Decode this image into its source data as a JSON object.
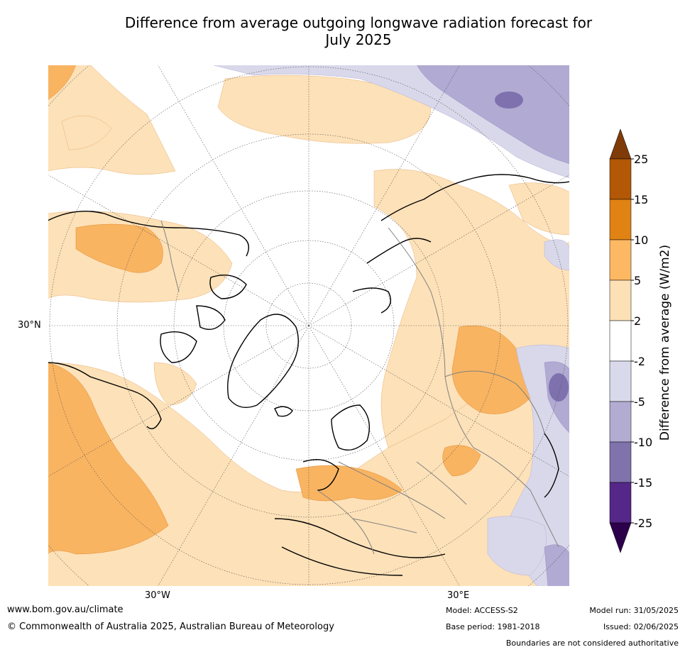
{
  "title_line1": "Difference from average outgoing longwave radiation forecast for",
  "title_line2": "July 2025",
  "map": {
    "lat_label": "30°N",
    "lon_labels": [
      "30°W",
      "30°E"
    ],
    "colors": {
      "ocean_white": "#ffffff",
      "light_orange": "#fde1b8",
      "mid_orange": "#f9b461",
      "dark_orange": "#e08014",
      "light_purple": "#d8d8ea",
      "mid_purple": "#b1aad2",
      "dark_purple": "#7e71ae",
      "coast": "#000000",
      "border": "#808080"
    }
  },
  "colorbar": {
    "label": "Difference from average (W/m2)",
    "ticks": [
      "25",
      "15",
      "10",
      "5",
      "2",
      "-2",
      "-5",
      "-10",
      "-15",
      "-25"
    ],
    "colors": [
      "#7f3b08",
      "#b35806",
      "#e08214",
      "#fdb863",
      "#fee0b6",
      "#ffffff",
      "#d8daeb",
      "#b2abd2",
      "#8073ac",
      "#542788",
      "#2d004b"
    ]
  },
  "footer": {
    "url": "www.bom.gov.au/climate",
    "copyright": "© Commonwealth of Australia 2025, Australian Bureau of Meteorology",
    "model": "Model: ACCESS-S2",
    "base_period": "Base period: 1981-2018",
    "model_run": "Model run: 31/05/2025",
    "issued": "Issued: 02/06/2025",
    "disclaimer": "Boundaries are not considered authoritative"
  }
}
